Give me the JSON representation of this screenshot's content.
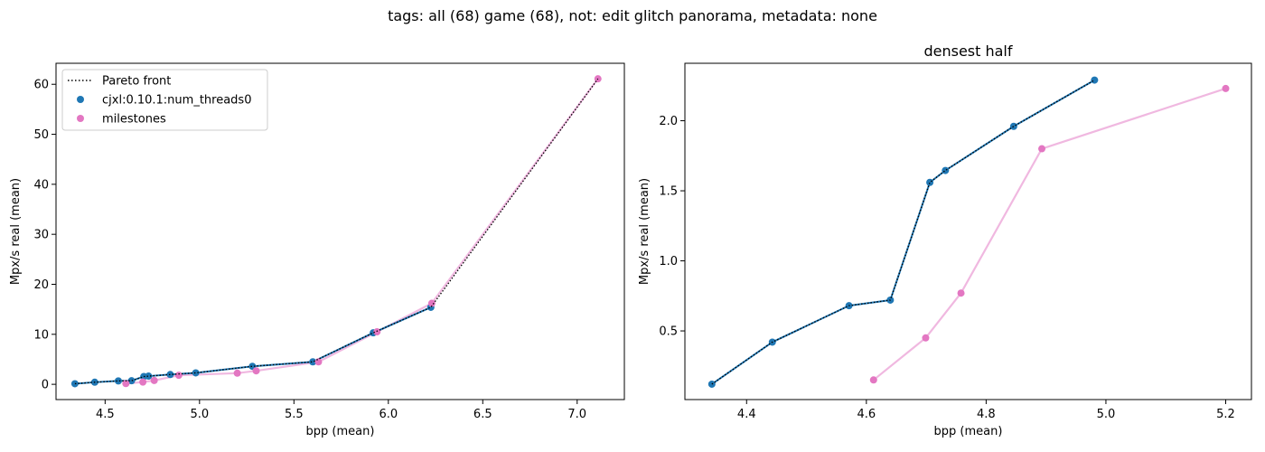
{
  "figure": {
    "suptitle": "tags: all (68) game (68), not: edit glitch panorama, metadata: none"
  },
  "colors": {
    "pareto": "#000000",
    "cjxl": "#1f77b4",
    "milestones": "#e377c2",
    "milestones_line": "#f0b8e0"
  },
  "chart_data": [
    {
      "type": "scatter",
      "title": "",
      "xlabel": "bpp (mean)",
      "ylabel": "Mpx/s real (mean)",
      "xlim": [
        4.24,
        7.25
      ],
      "ylim": [
        -3.05,
        64.2
      ],
      "xticks": [
        4.5,
        5.0,
        5.5,
        6.0,
        6.5,
        7.0
      ],
      "xtick_labels": [
        "4.5",
        "5.0",
        "5.5",
        "6.0",
        "6.5",
        "7.0"
      ],
      "yticks": [
        0,
        10,
        20,
        30,
        40,
        50,
        60
      ],
      "ytick_labels": [
        "0",
        "10",
        "20",
        "30",
        "40",
        "50",
        "60"
      ],
      "legend": {
        "position": "top-left",
        "entries": [
          "Pareto front",
          "cjxl:0.10.1:num_threads0",
          "milestones"
        ]
      },
      "series": [
        {
          "name": "Pareto front",
          "style": "dotted-line",
          "x": [
            4.34,
            4.445,
            4.57,
            4.64,
            4.705,
            4.73,
            4.845,
            4.98,
            5.28,
            5.6,
            5.92,
            6.225,
            7.11
          ],
          "y": [
            0.12,
            0.42,
            0.68,
            0.72,
            1.56,
            1.64,
            1.96,
            2.29,
            3.6,
            4.5,
            10.3,
            15.4,
            61.1
          ]
        },
        {
          "name": "cjxl:0.10.1:num_threads0",
          "style": "markers-line",
          "x": [
            4.34,
            4.445,
            4.57,
            4.64,
            4.705,
            4.73,
            4.845,
            4.98,
            5.28,
            5.6,
            5.92,
            6.225
          ],
          "y": [
            0.12,
            0.42,
            0.68,
            0.72,
            1.56,
            1.64,
            1.96,
            2.29,
            3.6,
            4.5,
            10.3,
            15.4
          ]
        },
        {
          "name": "milestones",
          "style": "markers-line",
          "x": [
            4.61,
            4.7,
            4.76,
            4.89,
            5.2,
            5.3,
            5.63,
            5.94,
            6.23,
            7.11
          ],
          "y": [
            0.15,
            0.45,
            0.77,
            1.8,
            2.23,
            2.7,
            4.5,
            10.5,
            16.2,
            61.1
          ]
        }
      ]
    },
    {
      "type": "scatter",
      "title": "densest half",
      "xlabel": "bpp (mean)",
      "ylabel": "Mpx/s real (mean)",
      "xlim": [
        4.297,
        5.243
      ],
      "ylim": [
        0.01,
        2.41
      ],
      "xticks": [
        4.4,
        4.6,
        4.8,
        5.0,
        5.2
      ],
      "xtick_labels": [
        "4.4",
        "4.6",
        "4.8",
        "5.0",
        "5.2"
      ],
      "yticks": [
        0.5,
        1.0,
        1.5,
        2.0
      ],
      "ytick_labels": [
        "0.5",
        "1.0",
        "1.5",
        "2.0"
      ],
      "series": [
        {
          "name": "Pareto front",
          "style": "dotted-line",
          "x": [
            4.342,
            4.443,
            4.571,
            4.64,
            4.706,
            4.732,
            4.846,
            4.981
          ],
          "y": [
            0.12,
            0.42,
            0.68,
            0.72,
            1.56,
            1.645,
            1.96,
            2.29
          ]
        },
        {
          "name": "cjxl:0.10.1:num_threads0",
          "style": "markers-line",
          "x": [
            4.342,
            4.443,
            4.571,
            4.64,
            4.706,
            4.732,
            4.846,
            4.981
          ],
          "y": [
            0.12,
            0.42,
            0.68,
            0.72,
            1.56,
            1.645,
            1.96,
            2.29
          ]
        },
        {
          "name": "milestones",
          "style": "markers-line",
          "x": [
            4.612,
            4.699,
            4.758,
            4.893,
            5.2
          ],
          "y": [
            0.15,
            0.45,
            0.77,
            1.8,
            2.23
          ]
        }
      ]
    }
  ]
}
